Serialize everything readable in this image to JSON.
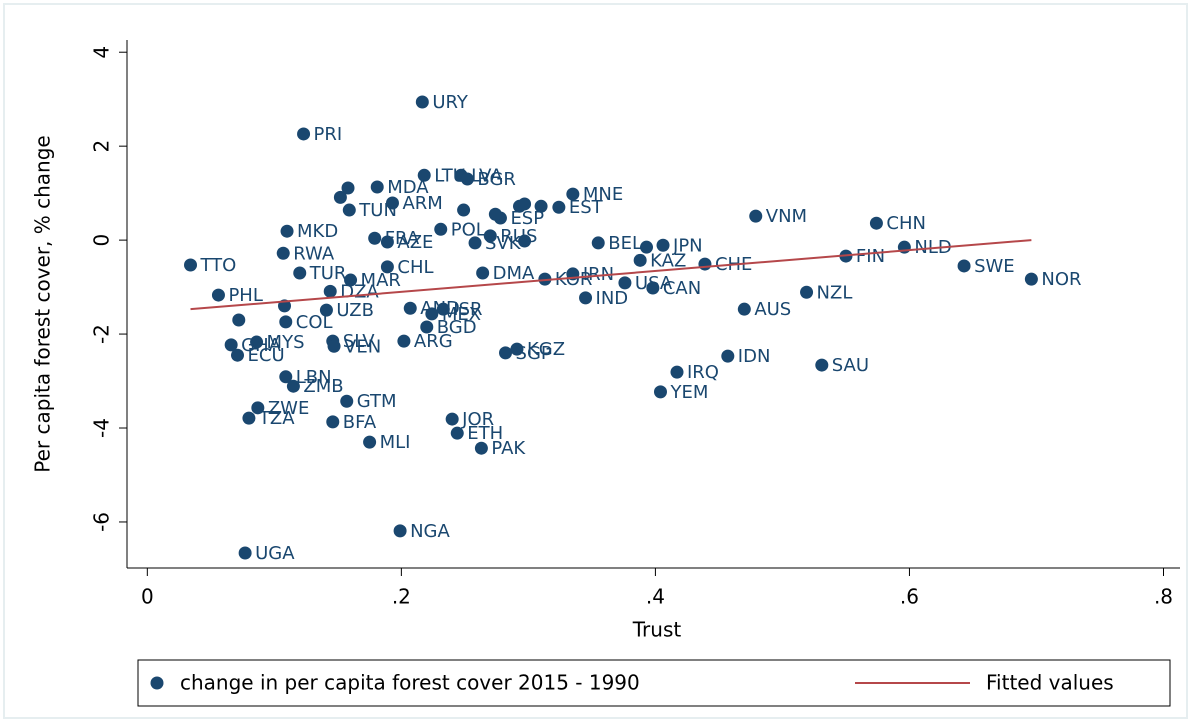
{
  "chart_data": {
    "type": "scatter",
    "xlabel": "Trust",
    "ylabel": "Per capita forest cover, % change",
    "xlim": [
      -0.016,
      0.813
    ],
    "ylim": [
      -6.98,
      4.26
    ],
    "xticks": [
      0,
      {
        "value": 0.2,
        "label": ".2"
      },
      {
        "value": 0.4,
        "label": ".4"
      },
      {
        "value": 0.6,
        "label": ".6"
      },
      {
        "value": 0.8,
        "label": ".8"
      }
    ],
    "yticks": [
      -6,
      -4,
      -2,
      0,
      2,
      4
    ],
    "series": [
      {
        "name": "change in per capita forest cover 2015 - 1990",
        "color": "#1a476f",
        "labels": [
          "URY",
          "PRI",
          "LTU",
          "LVA",
          "BGR",
          "MDA",
          null,
          null,
          "ARM",
          "TUN",
          "MNE",
          "EST",
          null,
          "VNM",
          "CHN",
          "NLD",
          "FIN",
          "JPN",
          "SWE",
          "NOR",
          "MKD",
          "RWA",
          "TTO",
          "TUR",
          "CHL",
          "MAR",
          "DZA",
          "PHL",
          "DMA",
          "IRN",
          "KOR",
          "USA",
          "CAN",
          "KAZ",
          "CHE",
          "IND",
          "NZL",
          "AUS",
          "UZB",
          null,
          "COL",
          null,
          "AND",
          "ISR",
          "MEX",
          "BGD",
          "ARG",
          "SLV",
          "VEN",
          "MYS",
          "GHA",
          "ECU",
          "KGZ",
          "SGP",
          "IDN",
          "SAU",
          "IRQ",
          "YEM",
          "LBN",
          "ZMB",
          "GTM",
          "ZWE",
          "TZA",
          "BFA",
          "JOR",
          "ETH",
          "MLI",
          "PAK",
          "NGA",
          "UGA",
          "POL",
          "ESP",
          "RUS",
          "SVK",
          "FRA",
          "AZE",
          "BEL",
          null,
          null,
          null,
          null,
          null,
          null
        ],
        "x": [
          0.2165,
          0.123,
          0.218,
          0.247,
          0.252,
          0.181,
          0.158,
          0.152,
          0.193,
          0.159,
          0.335,
          0.324,
          0.31,
          0.479,
          0.574,
          0.596,
          0.55,
          0.406,
          0.643,
          0.696,
          0.11,
          0.107,
          0.034,
          0.12,
          0.189,
          0.16,
          0.144,
          0.056,
          0.264,
          0.335,
          0.313,
          0.376,
          0.398,
          0.388,
          0.439,
          0.345,
          0.519,
          0.47,
          0.141,
          0.108,
          0.109,
          0.072,
          0.207,
          0.233,
          0.224,
          0.22,
          0.202,
          0.146,
          0.147,
          0.086,
          0.066,
          0.071,
          0.291,
          0.282,
          0.457,
          0.531,
          0.417,
          0.404,
          0.109,
          0.115,
          0.157,
          0.087,
          0.08,
          0.146,
          0.24,
          0.244,
          0.175,
          0.263,
          0.199,
          0.077,
          0.231,
          0.278,
          0.27,
          0.258,
          0.179,
          0.189,
          0.355,
          0.249,
          0.293,
          0.274,
          0.297,
          0.297,
          0.393
        ],
        "values": [
          2.94,
          2.26,
          1.38,
          1.38,
          1.3,
          1.13,
          1.11,
          0.91,
          0.79,
          0.64,
          0.98,
          0.7,
          0.72,
          0.51,
          0.36,
          -0.15,
          -0.34,
          -0.11,
          -0.55,
          -0.83,
          0.19,
          -0.28,
          -0.53,
          -0.7,
          -0.57,
          -0.85,
          -1.09,
          -1.17,
          -0.7,
          -0.72,
          -0.83,
          -0.91,
          -1.02,
          -0.43,
          -0.51,
          -1.23,
          -1.11,
          -1.47,
          -1.49,
          -1.4,
          -1.74,
          -1.7,
          -1.45,
          -1.47,
          -1.57,
          -1.85,
          -2.15,
          -2.15,
          -2.26,
          -2.17,
          -2.23,
          -2.45,
          -2.32,
          -2.4,
          -2.47,
          -2.66,
          -2.81,
          -3.23,
          -2.91,
          -3.11,
          -3.43,
          -3.57,
          -3.79,
          -3.87,
          -3.81,
          -4.11,
          -4.3,
          -4.43,
          -6.19,
          -6.66,
          0.23,
          0.47,
          0.09,
          -0.06,
          0.04,
          -0.04,
          -0.06,
          0.64,
          0.72,
          0.55,
          0.77,
          -0.02,
          -0.15
        ]
      },
      {
        "name": "Fitted values",
        "type": "line",
        "color": "#b5474a",
        "x": [
          0.034,
          0.696
        ],
        "values": [
          -1.47,
          0.0
        ]
      }
    ]
  }
}
